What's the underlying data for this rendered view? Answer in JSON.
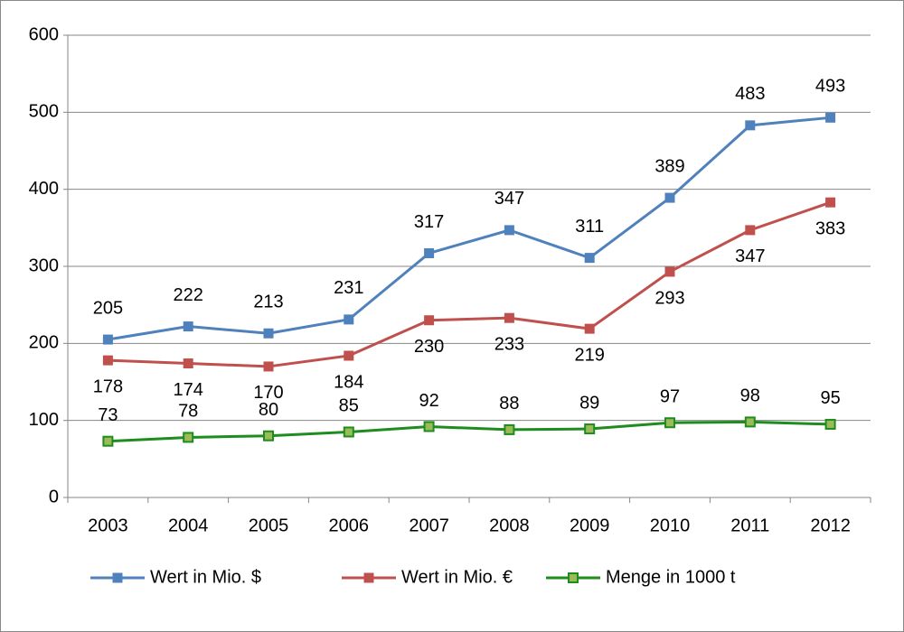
{
  "chart_data": {
    "type": "line",
    "categories": [
      "2003",
      "2004",
      "2005",
      "2006",
      "2007",
      "2008",
      "2009",
      "2010",
      "2011",
      "2012"
    ],
    "series": [
      {
        "name": "Wert in Mio. $",
        "color": "#4f81bd",
        "values": [
          205,
          222,
          213,
          231,
          317,
          347,
          311,
          389,
          483,
          493
        ]
      },
      {
        "name": "Wert in Mio. €",
        "color": "#c0504d",
        "values": [
          178,
          174,
          170,
          184,
          230,
          233,
          219,
          293,
          347,
          383
        ]
      },
      {
        "name": "Menge in 1000 t",
        "color": "#1e8c1e",
        "values": [
          73,
          78,
          80,
          85,
          92,
          88,
          89,
          97,
          98,
          95
        ]
      }
    ],
    "ylim": [
      0,
      600
    ],
    "yticks": [
      0,
      100,
      200,
      300,
      400,
      500,
      600
    ],
    "grid": true,
    "legend": "bottom"
  }
}
